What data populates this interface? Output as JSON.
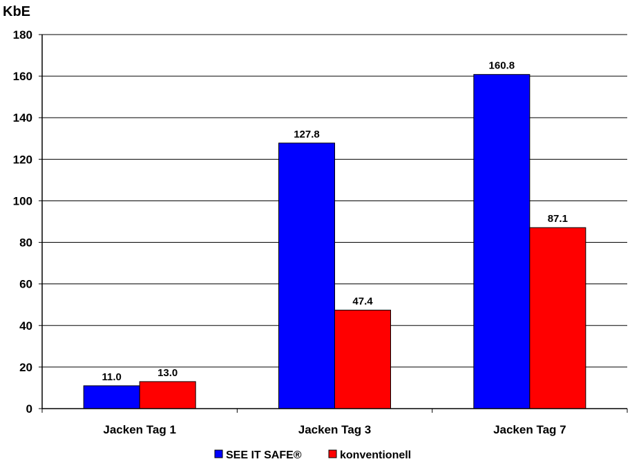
{
  "chart_data": {
    "type": "bar",
    "title": "",
    "ylabel": "KbE",
    "xlabel": "",
    "ylim": [
      0,
      180
    ],
    "yticks": [
      0,
      20,
      40,
      60,
      80,
      100,
      120,
      140,
      160,
      180
    ],
    "grid": true,
    "legend_position": "bottom",
    "categories": [
      "Jacken Tag 1",
      "Jacken Tag 3",
      "Jacken Tag 7"
    ],
    "series": [
      {
        "name": "SEE IT SAFE®",
        "color": "#0000ff",
        "values": [
          11.0,
          127.8,
          160.8
        ],
        "labels": [
          "11.0",
          "127.8",
          "160.8"
        ]
      },
      {
        "name": "konventionell",
        "color": "#ff0000",
        "values": [
          13.0,
          47.4,
          87.1
        ],
        "labels": [
          "13.0",
          "47.4",
          "87.1"
        ]
      }
    ]
  }
}
